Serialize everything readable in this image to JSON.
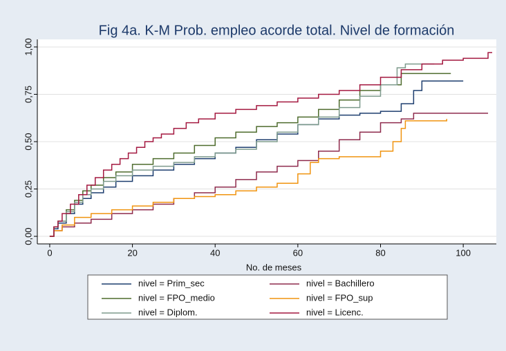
{
  "chart_data": {
    "type": "line",
    "interpolation": "step",
    "title": "Fig 4a. K-M Prob. empleo acorde total. Nivel de formación",
    "x_label": "No. de meses",
    "xlim": [
      -3,
      108
    ],
    "xticks": [
      0,
      20,
      40,
      60,
      80,
      100
    ],
    "ylim": [
      -0.04,
      1.04
    ],
    "yticks": [
      {
        "value": 0,
        "label": "0,00"
      },
      {
        "value": 0.25,
        "label": "0,25"
      },
      {
        "value": 0.5,
        "label": "0,50"
      },
      {
        "value": 0.75,
        "label": "0,75"
      },
      {
        "value": 1,
        "label": "1,00"
      }
    ],
    "grid": true,
    "legend": "bottom",
    "series": [
      {
        "name": "nivel = Prim_sec",
        "color": "#1c3d6e",
        "x": [
          0,
          1,
          2,
          4,
          6,
          8,
          10,
          13,
          16,
          20,
          25,
          30,
          35,
          40,
          45,
          50,
          55,
          60,
          65,
          70,
          75,
          80,
          85,
          88,
          90,
          100
        ],
        "values": [
          0,
          0.04,
          0.07,
          0.12,
          0.17,
          0.2,
          0.23,
          0.26,
          0.29,
          0.32,
          0.35,
          0.38,
          0.41,
          0.44,
          0.47,
          0.51,
          0.54,
          0.59,
          0.62,
          0.64,
          0.65,
          0.66,
          0.7,
          0.77,
          0.82,
          0.82
        ]
      },
      {
        "name": "nivel = Bachillero",
        "color": "#8e2a4c",
        "x": [
          0,
          1,
          3,
          6,
          10,
          15,
          20,
          25,
          30,
          35,
          40,
          45,
          50,
          55,
          60,
          65,
          70,
          75,
          80,
          85,
          88,
          106
        ],
        "values": [
          0,
          0.03,
          0.05,
          0.07,
          0.09,
          0.12,
          0.14,
          0.17,
          0.2,
          0.23,
          0.26,
          0.3,
          0.34,
          0.37,
          0.4,
          0.45,
          0.51,
          0.55,
          0.6,
          0.62,
          0.65,
          0.65
        ]
      },
      {
        "name": "nivel = FPO_medio",
        "color": "#4d6b2c",
        "x": [
          0,
          1,
          2,
          4,
          6,
          8,
          10,
          13,
          16,
          20,
          25,
          30,
          35,
          40,
          45,
          50,
          55,
          60,
          65,
          70,
          75,
          80,
          85,
          97
        ],
        "values": [
          0,
          0.05,
          0.08,
          0.14,
          0.19,
          0.24,
          0.27,
          0.31,
          0.34,
          0.38,
          0.41,
          0.44,
          0.48,
          0.52,
          0.55,
          0.58,
          0.6,
          0.63,
          0.67,
          0.72,
          0.77,
          0.8,
          0.86,
          0.86
        ]
      },
      {
        "name": "nivel = FPO_sup",
        "color": "#f0930e",
        "x": [
          0,
          1,
          3,
          6,
          10,
          15,
          20,
          25,
          30,
          35,
          40,
          45,
          50,
          55,
          60,
          63,
          65,
          70,
          75,
          80,
          83,
          85,
          86,
          96
        ],
        "values": [
          0,
          0.03,
          0.06,
          0.1,
          0.12,
          0.14,
          0.16,
          0.18,
          0.2,
          0.21,
          0.22,
          0.24,
          0.26,
          0.28,
          0.33,
          0.39,
          0.41,
          0.42,
          0.42,
          0.45,
          0.5,
          0.57,
          0.61,
          0.62
        ]
      },
      {
        "name": "nivel = Diplom.",
        "color": "#7d9a8c",
        "x": [
          0,
          1,
          2,
          4,
          6,
          8,
          10,
          13,
          16,
          20,
          25,
          30,
          35,
          40,
          45,
          50,
          55,
          60,
          65,
          70,
          75,
          80,
          84,
          86,
          93
        ],
        "values": [
          0,
          0.05,
          0.08,
          0.13,
          0.18,
          0.22,
          0.25,
          0.29,
          0.32,
          0.35,
          0.37,
          0.39,
          0.42,
          0.44,
          0.46,
          0.5,
          0.55,
          0.59,
          0.63,
          0.68,
          0.74,
          0.8,
          0.89,
          0.91,
          0.91
        ]
      },
      {
        "name": "nivel = Licenc.",
        "color": "#a3173f",
        "x": [
          0,
          1,
          2,
          3,
          5,
          7,
          9,
          11,
          13,
          15,
          17,
          19,
          21,
          23,
          25,
          27,
          30,
          33,
          36,
          40,
          45,
          50,
          55,
          60,
          65,
          70,
          75,
          80,
          85,
          90,
          95,
          100,
          106,
          107
        ],
        "values": [
          0,
          0.05,
          0.08,
          0.12,
          0.17,
          0.22,
          0.27,
          0.31,
          0.35,
          0.38,
          0.41,
          0.44,
          0.47,
          0.5,
          0.52,
          0.54,
          0.57,
          0.6,
          0.62,
          0.65,
          0.67,
          0.69,
          0.71,
          0.73,
          0.75,
          0.77,
          0.8,
          0.84,
          0.88,
          0.91,
          0.93,
          0.94,
          0.97,
          0.97
        ]
      }
    ]
  }
}
